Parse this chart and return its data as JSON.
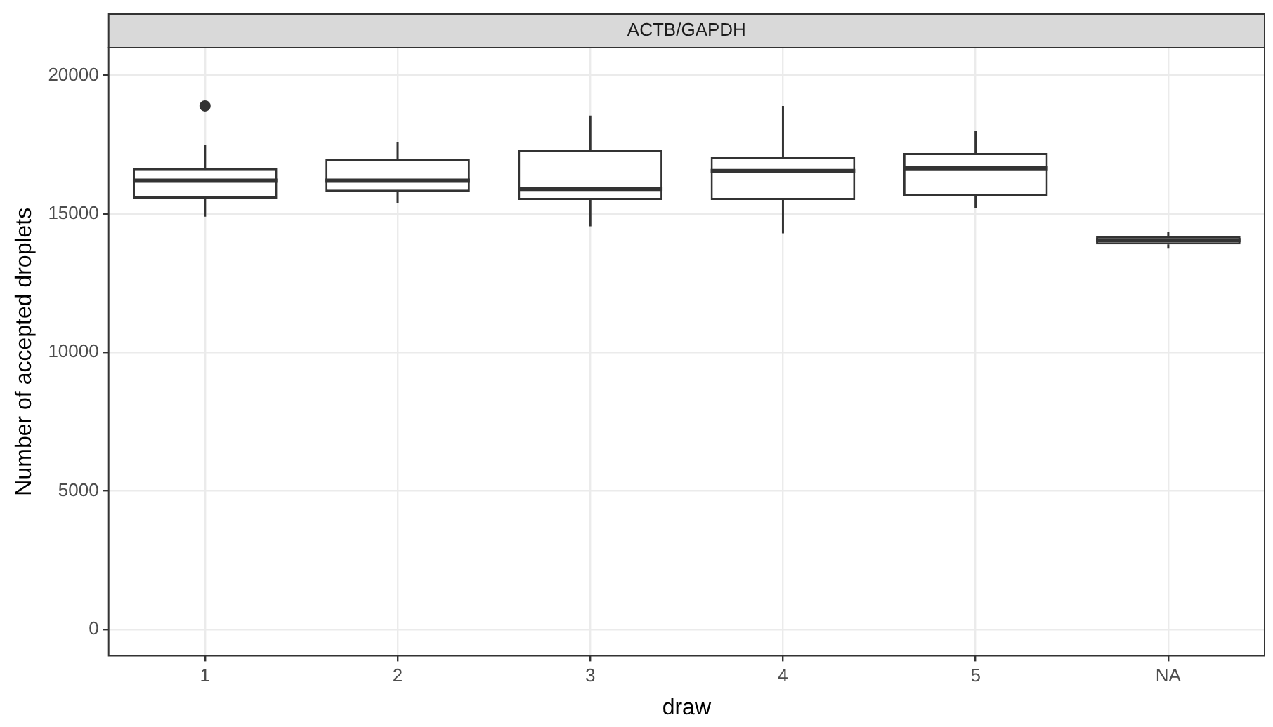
{
  "chart_data": {
    "type": "box",
    "title": "ACTB/GAPDH",
    "xlabel": "draw",
    "ylabel": "Number of accepted droplets",
    "categories": [
      "1",
      "2",
      "3",
      "4",
      "5",
      "NA"
    ],
    "boxes": [
      {
        "low": 14900,
        "q1": 15550,
        "median": 16200,
        "q3": 16650,
        "high": 17500,
        "outliers": [
          18900
        ]
      },
      {
        "low": 15400,
        "q1": 15800,
        "median": 16200,
        "q3": 17000,
        "high": 17600
      },
      {
        "low": 14550,
        "q1": 15500,
        "median": 15900,
        "q3": 17300,
        "high": 18550
      },
      {
        "low": 14300,
        "q1": 15500,
        "median": 16550,
        "q3": 17050,
        "high": 18900
      },
      {
        "low": 15200,
        "q1": 15650,
        "median": 16650,
        "q3": 17200,
        "high": 18000
      },
      {
        "low": 13750,
        "q1": 13900,
        "median": 14050,
        "q3": 14200,
        "high": 14350
      }
    ],
    "color": "#333333",
    "ylim": [
      -950,
      21000
    ],
    "yticks": [
      0,
      5000,
      10000,
      15000,
      20000
    ],
    "grid": true,
    "legend": false
  }
}
